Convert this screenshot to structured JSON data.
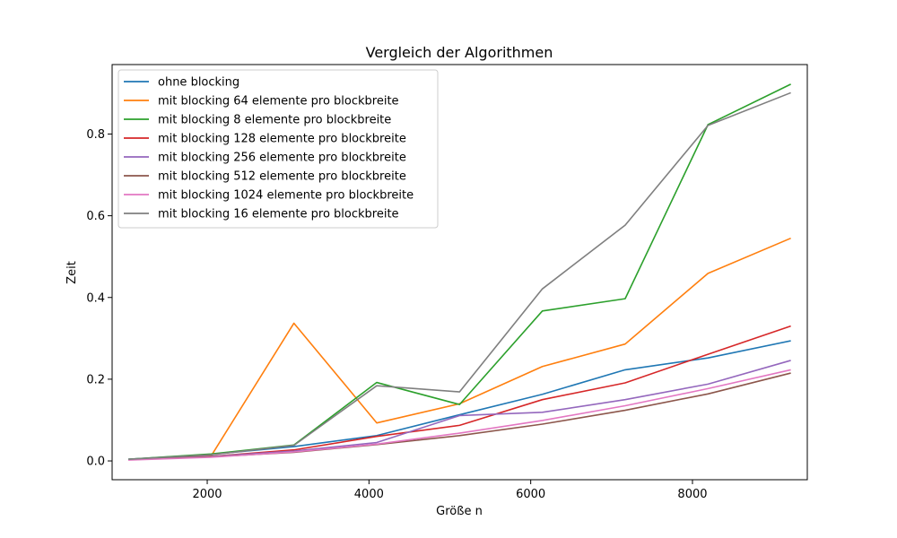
{
  "chart_data": {
    "type": "line",
    "title": "Vergleich der Algorithmen",
    "xlabel": "Größe n",
    "ylabel": "Zeit",
    "xlim": [
      824,
      9420
    ],
    "ylim": [
      -0.046,
      0.97
    ],
    "xticks": [
      2000,
      4000,
      6000,
      8000
    ],
    "yticks": [
      0.0,
      0.2,
      0.4,
      0.6,
      0.8
    ],
    "ytick_labels": [
      "0.0",
      "0.2",
      "0.4",
      "0.6",
      "0.8"
    ],
    "grid": false,
    "legend_position": "top-left",
    "x": [
      1024,
      2048,
      3072,
      4096,
      5120,
      6144,
      7168,
      8192,
      9216
    ],
    "series": [
      {
        "name": "ohne blocking",
        "color": "#1f77b4",
        "values": [
          0.004,
          0.016,
          0.035,
          0.062,
          0.113,
          0.163,
          0.223,
          0.252,
          0.294
        ]
      },
      {
        "name": "mit blocking 64 elemente pro blockbreite",
        "color": "#ff7f0e",
        "values": [
          0.003,
          0.012,
          0.337,
          0.093,
          0.14,
          0.231,
          0.286,
          0.459,
          0.545
        ]
      },
      {
        "name": "mit blocking 8 elemente pro blockbreite",
        "color": "#2ca02c",
        "values": [
          0.004,
          0.017,
          0.039,
          0.192,
          0.138,
          0.367,
          0.397,
          0.823,
          0.922
        ]
      },
      {
        "name": "mit blocking 128 elemente pro blockbreite",
        "color": "#d62728",
        "values": [
          0.003,
          0.011,
          0.027,
          0.06,
          0.087,
          0.15,
          0.191,
          0.261,
          0.33
        ]
      },
      {
        "name": "mit blocking 256 elemente pro blockbreite",
        "color": "#9467bd",
        "values": [
          0.003,
          0.011,
          0.024,
          0.045,
          0.111,
          0.119,
          0.15,
          0.188,
          0.246
        ]
      },
      {
        "name": "mit blocking 512 elemente pro blockbreite",
        "color": "#8c564b",
        "values": [
          0.003,
          0.01,
          0.021,
          0.04,
          0.062,
          0.09,
          0.124,
          0.164,
          0.215
        ]
      },
      {
        "name": "mit blocking 1024 elemente pro blockbreite",
        "color": "#e377c2",
        "values": [
          0.002,
          0.009,
          0.022,
          0.041,
          0.068,
          0.099,
          0.135,
          0.177,
          0.223
        ]
      },
      {
        "name": "mit blocking 16 elemente pro blockbreite",
        "color": "#7f7f7f",
        "values": [
          0.004,
          0.015,
          0.038,
          0.184,
          0.169,
          0.421,
          0.577,
          0.821,
          0.901
        ]
      }
    ]
  }
}
